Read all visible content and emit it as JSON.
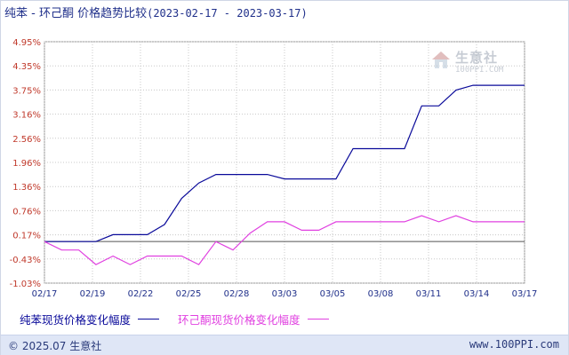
{
  "title": {
    "main": "纯苯 - 环己酮 价格趋势比较",
    "range": "(2023-02-17 - 2023-03-17)"
  },
  "colors": {
    "series_benzene": "#0a0a9a",
    "series_cyclohexanone": "#e040e0",
    "axis_tick": "#c0392b",
    "grid": "#c8c8c8",
    "title": "#1f2f8a"
  },
  "chart_data": {
    "type": "line",
    "title": "纯苯 - 环己酮 价格趋势比较",
    "x_tick_labels": [
      "02/17",
      "02/19",
      "02/22",
      "02/25",
      "02/28",
      "03/03",
      "03/05",
      "03/08",
      "03/11",
      "03/14",
      "03/17"
    ],
    "y_tick_labels": [
      "4.95%",
      "4.35%",
      "3.75%",
      "3.16%",
      "2.56%",
      "1.96%",
      "1.36%",
      "0.76%",
      "0.17%",
      "-0.43%",
      "-1.03%"
    ],
    "ylim": [
      -1.03,
      4.95
    ],
    "xlim": [
      0,
      28
    ],
    "grid": true,
    "legend_position": "bottom",
    "series": [
      {
        "name": "纯苯现货价格变化幅度",
        "color": "#0a0a9a",
        "points": [
          [
            0,
            0
          ],
          [
            2,
            0
          ],
          [
            3,
            0
          ],
          [
            4,
            0.17
          ],
          [
            5,
            0.17
          ],
          [
            6,
            0.17
          ],
          [
            7,
            0.42
          ],
          [
            8,
            1.07
          ],
          [
            9,
            1.45
          ],
          [
            10,
            1.66
          ],
          [
            11,
            1.66
          ],
          [
            12,
            1.66
          ],
          [
            13,
            1.66
          ],
          [
            14,
            1.55
          ],
          [
            15,
            1.55
          ],
          [
            16,
            1.55
          ],
          [
            17,
            1.55
          ],
          [
            18,
            2.3
          ],
          [
            19,
            2.3
          ],
          [
            20,
            2.3
          ],
          [
            21,
            2.3
          ],
          [
            22,
            3.36
          ],
          [
            23,
            3.36
          ],
          [
            24,
            3.75
          ],
          [
            25,
            3.87
          ],
          [
            26,
            3.87
          ],
          [
            27,
            3.87
          ],
          [
            28,
            3.87
          ]
        ]
      },
      {
        "name": "环己酮现货价格变化幅度",
        "color": "#e040e0",
        "points": [
          [
            0,
            0
          ],
          [
            1,
            -0.21
          ],
          [
            2,
            -0.21
          ],
          [
            3,
            -0.57
          ],
          [
            4,
            -0.36
          ],
          [
            5,
            -0.57
          ],
          [
            6,
            -0.36
          ],
          [
            7,
            -0.36
          ],
          [
            8,
            -0.36
          ],
          [
            9,
            -0.57
          ],
          [
            10,
            0
          ],
          [
            11,
            -0.21
          ],
          [
            12,
            0.21
          ],
          [
            13,
            0.49
          ],
          [
            14,
            0.49
          ],
          [
            15,
            0.28
          ],
          [
            16,
            0.28
          ],
          [
            17,
            0.49
          ],
          [
            18,
            0.49
          ],
          [
            19,
            0.49
          ],
          [
            20,
            0.49
          ],
          [
            21,
            0.49
          ],
          [
            22,
            0.64
          ],
          [
            23,
            0.49
          ],
          [
            24,
            0.64
          ],
          [
            25,
            0.49
          ],
          [
            26,
            0.49
          ],
          [
            27,
            0.49
          ],
          [
            28,
            0.49
          ]
        ]
      }
    ]
  },
  "legend": {
    "item1": "纯苯现货价格变化幅度",
    "item2": "环己酮现货价格变化幅度"
  },
  "watermark": {
    "name": "生意社",
    "url": "100PPI.COM"
  },
  "footer": {
    "copyright": "© 2025.07 生意社",
    "url": "www.100PPI.com"
  }
}
